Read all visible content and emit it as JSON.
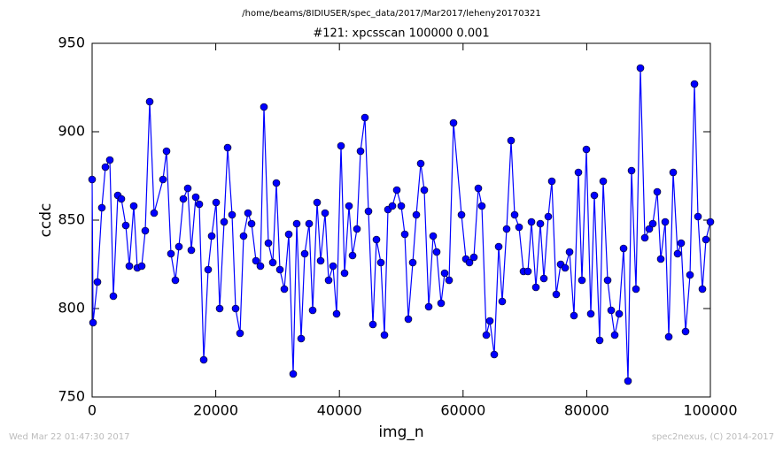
{
  "chart_data": {
    "type": "line",
    "suptitle": "/home/beams/8IDIUSER/spec_data/2017/Mar2017/leheny20170321",
    "title": "#121: xpcsscan 100000 0.001",
    "xlabel": "img_n",
    "ylabel": "ccdc",
    "footer_left": "Wed Mar 22 01:47:30 2017",
    "footer_right": "spec2nexus, (C) 2014-2017",
    "color": "#0000ff",
    "xlim": [
      0,
      100000
    ],
    "xticks": [
      0,
      20000,
      40000,
      60000,
      80000,
      100000
    ],
    "ylim": [
      750,
      950
    ],
    "yticks": [
      750,
      800,
      850,
      900,
      950
    ],
    "x": [
      0,
      150,
      860,
      1576,
      2149,
      2865,
      3438,
      4155,
      4728,
      5444,
      6017,
      6734,
      7307,
      8023,
      8596,
      9313,
      10029,
      11462,
      12035,
      12751,
      13467,
      14040,
      14757,
      15473,
      16046,
      16763,
      17336,
      18052,
      18768,
      19341,
      20058,
      20631,
      21347,
      21920,
      22637,
      23210,
      23926,
      24499,
      25216,
      25789,
      26505,
      27221,
      27794,
      28511,
      29227,
      29800,
      30373,
      31090,
      31806,
      32522,
      33095,
      33812,
      34385,
      35101,
      35674,
      36391,
      36964,
      37680,
      38253,
      38969,
      39543,
      40259,
      40832,
      41548,
      42121,
      42838,
      43411,
      44127,
      44700,
      45417,
      45990,
      46706,
      47279,
      47852,
      48568,
      49285,
      50001,
      50574,
      51147,
      51864,
      52437,
      53153,
      53726,
      54443,
      55159,
      55732,
      56448,
      57021,
      57738,
      58454,
      59744,
      60460,
      61033,
      61749,
      62466,
      63039,
      63755,
      64328,
      65045,
      65761,
      66334,
      67050,
      67767,
      68340,
      69056,
      69772,
      70489,
      71062,
      71778,
      72495,
      73068,
      73784,
      74357,
      75073,
      75790,
      76506,
      77223,
      77939,
      78655,
      79228,
      79945,
      80661,
      81234,
      82094,
      82667,
      83383,
      83956,
      84529,
      85246,
      85962,
      86678,
      87251,
      87968,
      88684,
      89400,
      90117,
      90690,
      91406,
      91979,
      92696,
      93269,
      93985,
      94701,
      95274,
      95991,
      96707,
      97424,
      97997,
      98713,
      99286,
      100000
    ],
    "values": [
      873,
      792,
      815,
      857,
      880,
      884,
      807,
      864,
      862,
      847,
      824,
      858,
      823,
      824,
      844,
      917,
      854,
      873,
      889,
      831,
      816,
      835,
      862,
      868,
      833,
      863,
      859,
      771,
      822,
      841,
      860,
      800,
      849,
      891,
      853,
      800,
      786,
      841,
      854,
      848,
      827,
      824,
      914,
      837,
      826,
      871,
      822,
      811,
      842,
      763,
      848,
      783,
      831,
      848,
      799,
      860,
      827,
      854,
      816,
      824,
      797,
      892,
      820,
      858,
      830,
      845,
      889,
      908,
      855,
      791,
      839,
      826,
      785,
      856,
      858,
      867,
      858,
      842,
      794,
      826,
      853,
      882,
      867,
      801,
      841,
      832,
      803,
      820,
      816,
      905,
      853,
      828,
      826,
      829,
      868,
      858,
      785,
      793,
      774,
      835,
      804,
      845,
      895,
      853,
      846,
      821,
      821,
      849,
      812,
      848,
      817,
      852,
      872,
      808,
      825,
      823,
      832,
      796,
      877,
      816,
      890,
      797,
      864,
      782,
      872,
      816,
      799,
      785,
      797,
      834,
      759,
      878,
      811,
      936,
      840,
      845,
      848,
      866,
      828,
      849,
      784,
      877,
      831,
      837,
      787,
      819,
      927,
      852,
      811,
      839,
      849
    ]
  }
}
